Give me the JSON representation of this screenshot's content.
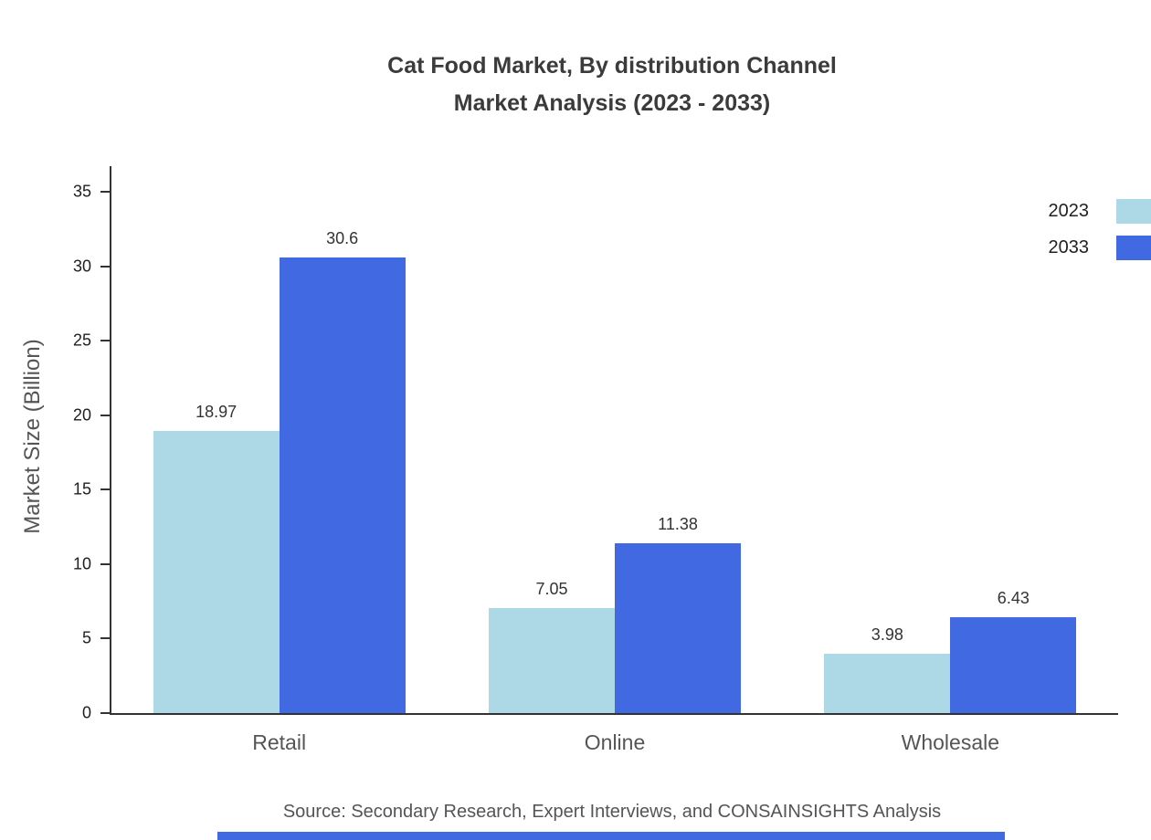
{
  "title": {
    "line1": "Cat Food Market, By distribution Channel",
    "line2": "Market Analysis (2023 - 2033)"
  },
  "source": "Source: Secondary Research, Expert Interviews, and CONSAINSIGHTS Analysis",
  "colors": {
    "series_2023": "#ADD8E6",
    "series_2033": "#4169E1",
    "accent": "#4169E1",
    "axis": "#333333"
  },
  "chart_data": {
    "type": "bar",
    "title": "Cat Food Market, By distribution Channel Market Analysis (2023 - 2033)",
    "categories": [
      "Retail",
      "Online",
      "Wholesale"
    ],
    "series": [
      {
        "name": "2023",
        "color": "#ADD8E6",
        "values": [
          18.97,
          7.05,
          3.98
        ]
      },
      {
        "name": "2033",
        "color": "#4169E1",
        "values": [
          30.6,
          11.38,
          6.43
        ]
      }
    ],
    "xlabel": "",
    "ylabel": "Market Size (Billion)",
    "ylim": [
      0,
      35
    ],
    "yticks": [
      0,
      5,
      10,
      15,
      20,
      25,
      30,
      35
    ],
    "grid": false,
    "legend_position": "top-right",
    "value_labels": true
  }
}
